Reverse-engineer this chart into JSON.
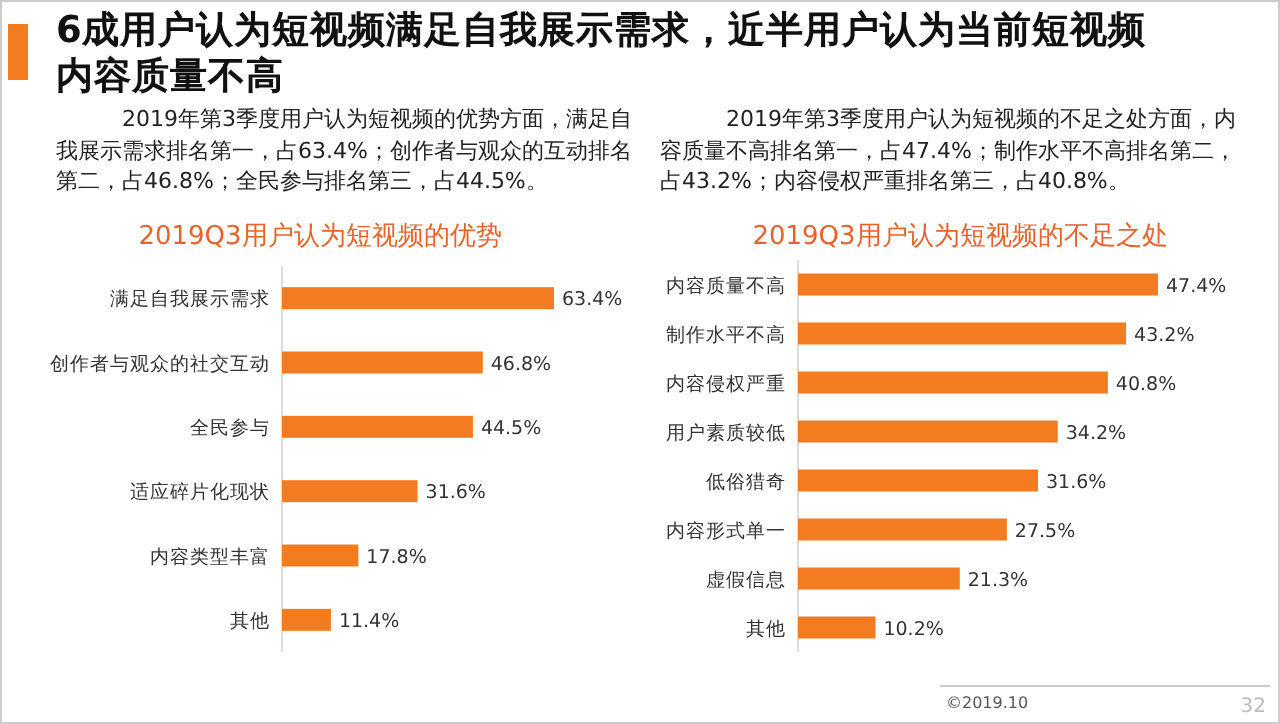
{
  "chart_data": [
    {
      "type": "bar",
      "orientation": "horizontal",
      "title": "2019Q3用户认为短视频的优势",
      "value_labels": [
        "63.4%",
        "46.8%",
        "44.5%",
        "31.6%",
        "17.8%",
        "11.4%"
      ],
      "color": "#f47c20",
      "categories": [
        "满足自我展示需求",
        "创作者与观众的社交互动",
        "全民参与",
        "适应碎片化现状",
        "内容类型丰富",
        "其他"
      ],
      "values": [
        63.4,
        46.8,
        44.5,
        31.6,
        17.8,
        11.4
      ],
      "annotations": [
        "6成用户认为短视频满足自我展示需求，近半用户认为当前短视频内容质量不高",
        "2019年第3季度用户认为短视频的优势方面，满足自我展示需求排名第一，占63.4%；创作者与观众的互动排名第二，占46.8%；全民参与排名第三，占44.5%。"
      ]
    },
    {
      "type": "bar",
      "orientation": "horizontal",
      "title": "2019Q3用户认为短视频的不足之处",
      "value_labels": [
        "47.4%",
        "43.2%",
        "40.8%",
        "34.2%",
        "31.6%",
        "27.5%",
        "21.3%",
        "10.2%"
      ],
      "color": "#f47c20",
      "categories": [
        "内容质量不高",
        "制作水平不高",
        "内容侵权严重",
        "用户素质较低",
        "低俗猎奇",
        "内容形式单一",
        "虚假信息",
        "其他"
      ],
      "values": [
        47.4,
        43.2,
        40.8,
        34.2,
        31.6,
        27.5,
        21.3,
        10.2
      ],
      "annotations": [
        "2019年第3季度用户认为短视频的不足之处方面，内容质量不高排名第一，占47.4%；制作水平不高排名第二，占43.2%；内容侵权严重排名第三，占40.8%。",
        "©2019.10",
        "32"
      ]
    }
  ]
}
